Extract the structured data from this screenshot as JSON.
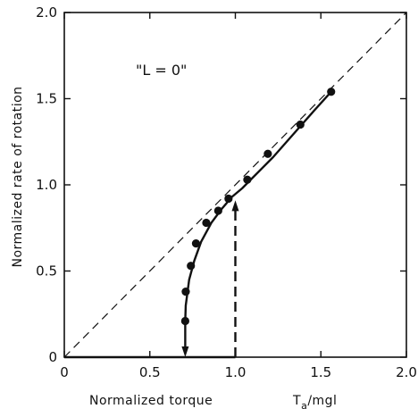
{
  "chart_data": {
    "type": "line",
    "xlabel": "Normalized torque",
    "xlabel_math": "T",
    "xlabel_sub": "a",
    "xlabel_suffix": "/mgl",
    "ylabel": "Normalized rate of rotation",
    "annotation": "\"L = 0\"",
    "xlim": [
      0,
      2.0
    ],
    "ylim": [
      0,
      2.0
    ],
    "x_ticks": [
      {
        "v": 0,
        "label": "0"
      },
      {
        "v": 0.5,
        "label": "0.5"
      },
      {
        "v": 1.0,
        "label": "1.0"
      },
      {
        "v": 1.5,
        "label": "1.5"
      },
      {
        "v": 2.0,
        "label": "2.0"
      }
    ],
    "y_ticks": [
      {
        "v": 0,
        "label": "0"
      },
      {
        "v": 0.5,
        "label": "0.5"
      },
      {
        "v": 1.0,
        "label": "1.0"
      },
      {
        "v": 1.5,
        "label": "1.5"
      },
      {
        "v": 2.0,
        "label": "2.0"
      }
    ],
    "series": [
      {
        "style": "dashed",
        "x": [
          0,
          2.0
        ],
        "y": [
          0,
          2.0
        ]
      },
      {
        "style": "solid-curve",
        "x": [
          0.707,
          0.71,
          0.73,
          0.76,
          0.8,
          0.86,
          0.92,
          0.98,
          1.04,
          1.1,
          1.16,
          1.22,
          1.3,
          1.38,
          1.46,
          1.56
        ],
        "y": [
          0.21,
          0.3,
          0.45,
          0.56,
          0.67,
          0.78,
          0.86,
          0.93,
          0.98,
          1.04,
          1.1,
          1.16,
          1.25,
          1.34,
          1.43,
          1.54
        ]
      },
      {
        "style": "solid",
        "x": [
          0,
          1.0
        ],
        "y": [
          0,
          0
        ]
      }
    ],
    "points": {
      "x": [
        0.707,
        0.71,
        0.74,
        0.77,
        0.83,
        0.9,
        0.96,
        1.07,
        1.19,
        1.38,
        1.56
      ],
      "y": [
        0.21,
        0.38,
        0.53,
        0.66,
        0.78,
        0.85,
        0.92,
        1.03,
        1.18,
        1.35,
        1.54
      ]
    },
    "arrows": [
      {
        "style": "solid",
        "x": 0.707,
        "from": 0.21,
        "to": 0.0
      },
      {
        "style": "dashed",
        "x": 1.0,
        "from": 0.0,
        "to": 0.91
      }
    ]
  }
}
